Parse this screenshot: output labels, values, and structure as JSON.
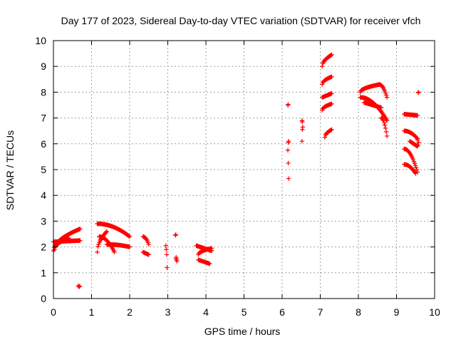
{
  "chart_data": {
    "type": "scatter",
    "title": "Day 177 of 2023, Sidereal Day-to-day VTEC variation (SDTVAR) for receiver vfch",
    "xlabel": "GPS time / hours",
    "ylabel": "SDTVAR / TECUs",
    "xlim": [
      0,
      10
    ],
    "ylim": [
      0,
      10
    ],
    "xticks": [
      "0",
      "1",
      "2",
      "3",
      "4",
      "5",
      "6",
      "7",
      "8",
      "9",
      "10"
    ],
    "yticks": [
      "0",
      "1",
      "2",
      "3",
      "4",
      "5",
      "6",
      "7",
      "8",
      "9",
      "10"
    ],
    "grid": true,
    "marker": "plus",
    "marker_color": "#ff0000",
    "series": [
      {
        "name": "SDTVAR",
        "segments": [
          {
            "x0": 0.0,
            "x1": 0.7,
            "y0": 1.85,
            "y1": 2.7,
            "shape": "rise"
          },
          {
            "x0": 0.0,
            "x1": 0.7,
            "y0": 2.2,
            "y1": 2.25,
            "shape": "flat"
          },
          {
            "x0": 0.03,
            "x1": 0.4,
            "y0": 1.9,
            "y1": 2.35,
            "shape": "rise"
          },
          {
            "x0": 1.15,
            "x1": 2.0,
            "y0": 2.9,
            "y1": 2.4,
            "shape": "fall"
          },
          {
            "x0": 1.15,
            "x1": 1.4,
            "y0": 1.8,
            "y1": 2.6,
            "shape": "rise"
          },
          {
            "x0": 1.4,
            "x1": 2.0,
            "y0": 2.1,
            "y1": 2.0,
            "shape": "fall"
          },
          {
            "x0": 1.2,
            "x1": 1.6,
            "y0": 2.4,
            "y1": 1.8,
            "shape": "fall"
          },
          {
            "x0": 2.35,
            "x1": 2.5,
            "y0": 2.4,
            "y1": 2.1,
            "shape": "fall"
          },
          {
            "x0": 2.35,
            "x1": 2.5,
            "y0": 1.8,
            "y1": 1.7,
            "shape": "flat"
          },
          {
            "x0": 3.75,
            "x1": 4.15,
            "y0": 2.05,
            "y1": 1.85,
            "shape": "flat"
          },
          {
            "x0": 3.8,
            "x1": 4.1,
            "y0": 1.5,
            "y1": 1.35,
            "shape": "flat"
          },
          {
            "x0": 3.8,
            "x1": 4.15,
            "y0": 1.7,
            "y1": 1.95,
            "shape": "rise"
          },
          {
            "x0": 7.05,
            "x1": 7.3,
            "y0": 9.0,
            "y1": 9.45,
            "shape": "rise"
          },
          {
            "x0": 7.05,
            "x1": 7.3,
            "y0": 8.3,
            "y1": 8.6,
            "shape": "rise"
          },
          {
            "x0": 7.05,
            "x1": 7.3,
            "y0": 7.8,
            "y1": 7.95,
            "shape": "flat"
          },
          {
            "x0": 7.05,
            "x1": 7.3,
            "y0": 7.3,
            "y1": 7.55,
            "shape": "rise"
          },
          {
            "x0": 7.12,
            "x1": 7.3,
            "y0": 6.25,
            "y1": 6.55,
            "shape": "rise"
          },
          {
            "x0": 8.05,
            "x1": 8.55,
            "y0": 8.0,
            "y1": 8.3,
            "shape": "rise"
          },
          {
            "x0": 8.55,
            "x1": 8.75,
            "y0": 8.3,
            "y1": 7.8,
            "shape": "fall"
          },
          {
            "x0": 8.05,
            "x1": 8.75,
            "y0": 7.8,
            "y1": 6.9,
            "shape": "fall"
          },
          {
            "x0": 8.15,
            "x1": 8.6,
            "y0": 7.6,
            "y1": 7.4,
            "shape": "flat"
          },
          {
            "x0": 8.6,
            "x1": 8.75,
            "y0": 7.0,
            "y1": 6.3,
            "shape": "fall"
          },
          {
            "x0": 9.2,
            "x1": 9.55,
            "y0": 7.15,
            "y1": 7.1,
            "shape": "flat"
          },
          {
            "x0": 9.2,
            "x1": 9.55,
            "y0": 6.5,
            "y1": 6.2,
            "shape": "fall"
          },
          {
            "x0": 9.2,
            "x1": 9.55,
            "y0": 5.8,
            "y1": 4.9,
            "shape": "fall"
          },
          {
            "x0": 9.2,
            "x1": 9.5,
            "y0": 5.2,
            "y1": 4.85,
            "shape": "fall"
          },
          {
            "x0": 9.35,
            "x1": 9.55,
            "y0": 6.1,
            "y1": 5.9,
            "shape": "flat"
          }
        ],
        "points": [
          [
            0.65,
            0.5
          ],
          [
            0.67,
            0.45
          ],
          [
            0.69,
            0.48
          ],
          [
            2.95,
            2.05
          ],
          [
            2.96,
            1.9
          ],
          [
            2.97,
            1.7
          ],
          [
            2.98,
            1.2
          ],
          [
            3.2,
            2.45
          ],
          [
            3.21,
            2.48
          ],
          [
            3.22,
            1.55
          ],
          [
            3.23,
            1.5
          ],
          [
            3.24,
            1.45
          ],
          [
            3.22,
            1.6
          ],
          [
            6.15,
            7.5
          ],
          [
            6.16,
            7.52
          ],
          [
            6.17,
            6.1
          ],
          [
            6.16,
            6.05
          ],
          [
            6.15,
            5.75
          ],
          [
            6.16,
            5.25
          ],
          [
            6.17,
            4.65
          ],
          [
            6.52,
            6.9
          ],
          [
            6.53,
            6.85
          ],
          [
            6.54,
            6.65
          ],
          [
            6.53,
            6.55
          ],
          [
            6.52,
            6.1
          ],
          [
            9.57,
            7.98
          ],
          [
            9.58,
            8.0
          ],
          [
            9.55,
            6.15
          ],
          [
            9.58,
            6.05
          ],
          [
            9.56,
            5.95
          ]
        ]
      }
    ]
  }
}
